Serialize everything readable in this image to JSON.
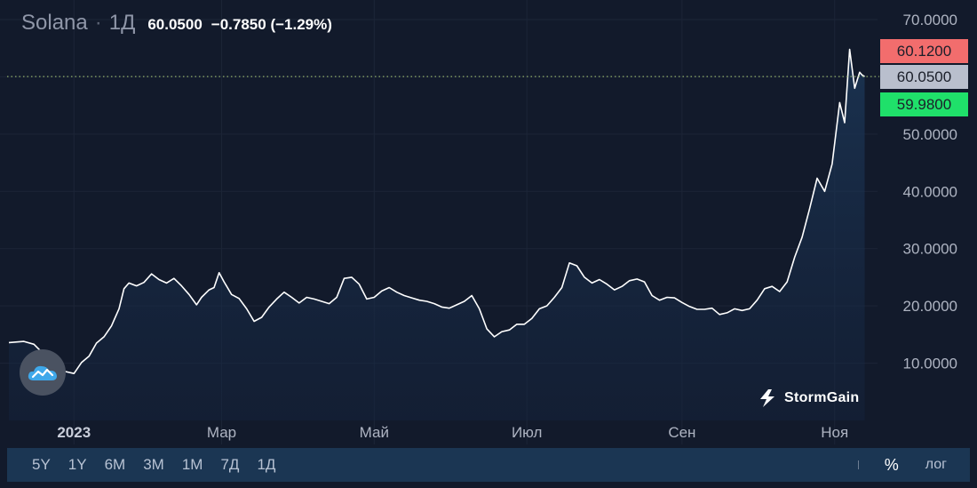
{
  "header": {
    "symbol": "Solana",
    "separator": "·",
    "interval": "1Д",
    "price": "60.0500",
    "change": "−0.7850 (−1.29%)"
  },
  "price_tags": {
    "ask": "60.1200",
    "last": "60.0500",
    "bid": "59.9800",
    "colors": {
      "ask": "#f26d6d",
      "last": "#b9bfcd",
      "bid": "#1fe06a"
    }
  },
  "brand": {
    "name": "StormGain"
  },
  "toolbar": {
    "ranges": [
      "5Y",
      "1Y",
      "6M",
      "3M",
      "1M",
      "7Д",
      "1Д"
    ],
    "percent_label": "%",
    "log_label": "лог"
  },
  "chart_data": {
    "type": "area",
    "title": "Solana",
    "y_ticks": [
      "70.0000",
      "60.0000",
      "50.0000",
      "40.0000",
      "30.0000",
      "20.0000",
      "10.0000"
    ],
    "ylim": [
      0,
      72
    ],
    "x_ticks": [
      {
        "label": "2023",
        "day": 13,
        "bold": true
      },
      {
        "label": "Мар",
        "day": 72,
        "bold": false
      },
      {
        "label": "Май",
        "day": 133,
        "bold": false
      },
      {
        "label": "Июл",
        "day": 194,
        "bold": false
      },
      {
        "label": "Сен",
        "day": 256,
        "bold": false
      },
      {
        "label": "Ноя",
        "day": 317,
        "bold": false
      }
    ],
    "xlim": [
      -13,
      332
    ],
    "series": [
      {
        "points": [
          [
            -13,
            13.6
          ],
          [
            -7,
            13.8
          ],
          [
            -3,
            13.3
          ],
          [
            0,
            12.0
          ],
          [
            3,
            10.8
          ],
          [
            6,
            9.8
          ],
          [
            9,
            8.6
          ],
          [
            13,
            8.2
          ],
          [
            16,
            10.1
          ],
          [
            19,
            11.2
          ],
          [
            22,
            13.5
          ],
          [
            25,
            14.6
          ],
          [
            28,
            16.5
          ],
          [
            31,
            19.5
          ],
          [
            33,
            23.0
          ],
          [
            35,
            24.0
          ],
          [
            38,
            23.5
          ],
          [
            41,
            24.1
          ],
          [
            44,
            25.6
          ],
          [
            47,
            24.6
          ],
          [
            50,
            24.0
          ],
          [
            53,
            24.8
          ],
          [
            56,
            23.5
          ],
          [
            59,
            22.0
          ],
          [
            62,
            20.2
          ],
          [
            64,
            21.5
          ],
          [
            67,
            22.8
          ],
          [
            69,
            23.2
          ],
          [
            71,
            25.8
          ],
          [
            73,
            24.2
          ],
          [
            76,
            22.0
          ],
          [
            79,
            21.3
          ],
          [
            82,
            19.5
          ],
          [
            85,
            17.3
          ],
          [
            88,
            18.0
          ],
          [
            91,
            19.8
          ],
          [
            94,
            21.2
          ],
          [
            97,
            22.4
          ],
          [
            100,
            21.5
          ],
          [
            103,
            20.5
          ],
          [
            106,
            21.5
          ],
          [
            109,
            21.2
          ],
          [
            112,
            20.8
          ],
          [
            115,
            20.4
          ],
          [
            118,
            21.5
          ],
          [
            121,
            24.8
          ],
          [
            124,
            25.0
          ],
          [
            127,
            23.8
          ],
          [
            130,
            21.2
          ],
          [
            133,
            21.5
          ],
          [
            136,
            22.6
          ],
          [
            139,
            23.2
          ],
          [
            142,
            22.4
          ],
          [
            145,
            21.8
          ],
          [
            148,
            21.4
          ],
          [
            151,
            21.0
          ],
          [
            154,
            20.8
          ],
          [
            157,
            20.4
          ],
          [
            160,
            19.8
          ],
          [
            163,
            19.6
          ],
          [
            166,
            20.2
          ],
          [
            169,
            20.8
          ],
          [
            172,
            21.8
          ],
          [
            175,
            19.5
          ],
          [
            178,
            16.0
          ],
          [
            181,
            14.6
          ],
          [
            184,
            15.5
          ],
          [
            187,
            15.8
          ],
          [
            190,
            16.8
          ],
          [
            193,
            16.8
          ],
          [
            196,
            17.8
          ],
          [
            199,
            19.5
          ],
          [
            202,
            20.0
          ],
          [
            205,
            21.5
          ],
          [
            208,
            23.2
          ],
          [
            211,
            27.5
          ],
          [
            214,
            27.0
          ],
          [
            217,
            25.0
          ],
          [
            220,
            24.0
          ],
          [
            223,
            24.6
          ],
          [
            226,
            23.8
          ],
          [
            229,
            22.8
          ],
          [
            232,
            23.4
          ],
          [
            235,
            24.4
          ],
          [
            238,
            24.7
          ],
          [
            241,
            24.2
          ],
          [
            244,
            21.8
          ],
          [
            247,
            21.0
          ],
          [
            250,
            21.5
          ],
          [
            253,
            21.4
          ],
          [
            256,
            20.6
          ],
          [
            259,
            19.9
          ],
          [
            262,
            19.4
          ],
          [
            265,
            19.4
          ],
          [
            268,
            19.6
          ],
          [
            271,
            18.5
          ],
          [
            274,
            18.8
          ],
          [
            277,
            19.5
          ],
          [
            280,
            19.2
          ],
          [
            283,
            19.5
          ],
          [
            286,
            21.0
          ],
          [
            289,
            23.0
          ],
          [
            292,
            23.4
          ],
          [
            295,
            22.5
          ],
          [
            298,
            24.2
          ],
          [
            301,
            28.5
          ],
          [
            304,
            32.0
          ],
          [
            307,
            37.0
          ],
          [
            310,
            42.3
          ],
          [
            313,
            40.0
          ],
          [
            316,
            44.8
          ],
          [
            319,
            55.5
          ],
          [
            321,
            52.0
          ],
          [
            323,
            64.8
          ],
          [
            325,
            58.0
          ],
          [
            327,
            60.8
          ],
          [
            328,
            60.3
          ],
          [
            329,
            60.05
          ]
        ]
      }
    ],
    "last_price_line": 60.05
  }
}
